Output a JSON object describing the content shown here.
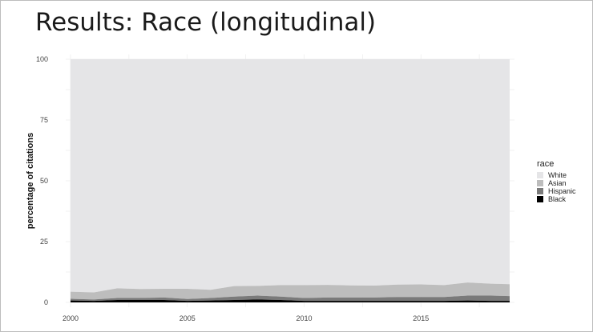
{
  "slide": {
    "title": "Results: Race (longitudinal)"
  },
  "chart_data": {
    "type": "area",
    "stacked": true,
    "x_tick_labels": [
      "2000",
      "2005",
      "2010",
      "2015"
    ],
    "y_tick_labels": [
      "0",
      "25",
      "50",
      "75",
      "100"
    ],
    "x_ticks": [
      2000,
      2005,
      2010,
      2015
    ],
    "y_ticks": [
      0,
      25,
      50,
      75,
      100
    ],
    "xlim": [
      2000,
      2018.8
    ],
    "ylim": [
      0,
      100
    ],
    "xlabel": "",
    "ylabel": "percentage of citations",
    "grid": true,
    "legend": {
      "title": "race",
      "position": "right",
      "entries": [
        "White",
        "Asian",
        "Hispanic",
        "Black"
      ]
    },
    "x": [
      2000,
      2001,
      2002,
      2003,
      2004,
      2005,
      2006,
      2007,
      2008,
      2009,
      2010,
      2011,
      2012,
      2013,
      2014,
      2015,
      2016,
      2017,
      2018,
      2018.8
    ],
    "series": [
      {
        "name": "Black",
        "color": "#000000",
        "values": [
          0.8,
          0.6,
          1.0,
          1.0,
          1.0,
          0.6,
          0.8,
          1.0,
          1.2,
          1.0,
          0.6,
          0.6,
          0.6,
          0.6,
          0.6,
          0.6,
          0.6,
          0.8,
          0.6,
          0.6
        ]
      },
      {
        "name": "Hispanic",
        "color": "#7a7a7a",
        "values": [
          0.7,
          0.6,
          0.8,
          0.8,
          1.0,
          0.8,
          1.0,
          1.4,
          1.6,
          1.4,
          1.2,
          1.4,
          1.4,
          1.4,
          1.6,
          1.6,
          1.6,
          2.0,
          2.2,
          2.0
        ]
      },
      {
        "name": "Asian",
        "color": "#bdbdbd",
        "values": [
          2.9,
          2.9,
          4.0,
          3.7,
          3.6,
          4.2,
          3.4,
          4.3,
          4.0,
          4.7,
          5.3,
          5.2,
          5.0,
          4.9,
          5.1,
          5.2,
          4.9,
          5.4,
          4.9,
          4.9
        ]
      },
      {
        "name": "White",
        "color": "#e5e5e7",
        "values": [
          95.6,
          95.9,
          94.2,
          94.5,
          94.4,
          94.4,
          94.8,
          93.3,
          93.2,
          92.9,
          92.9,
          92.8,
          93.0,
          93.1,
          92.7,
          92.6,
          92.9,
          91.8,
          92.3,
          92.5
        ]
      }
    ]
  }
}
